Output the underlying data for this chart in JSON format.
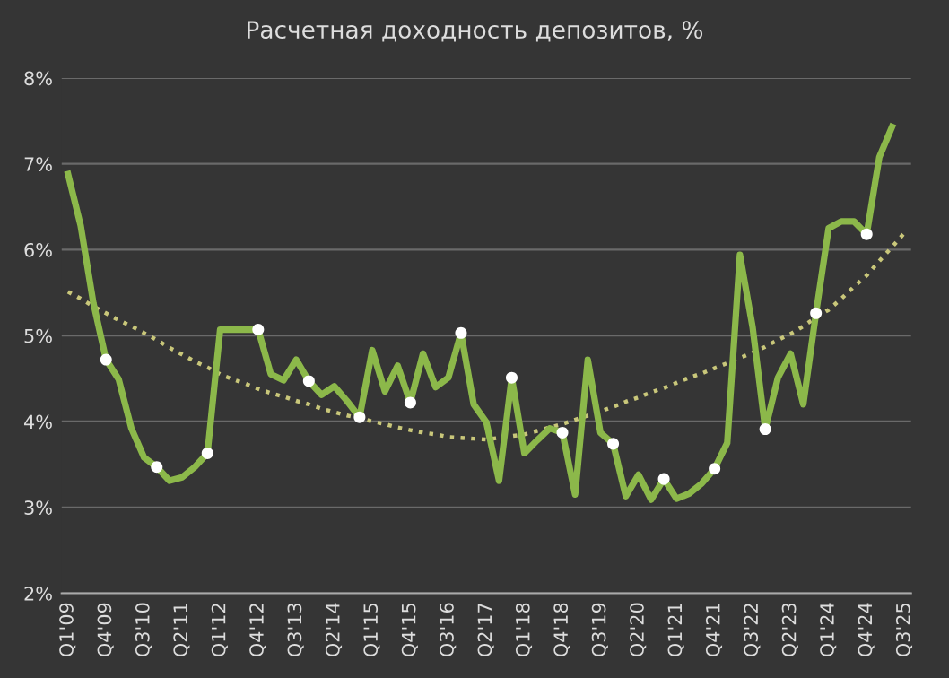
{
  "chart_data": {
    "type": "line",
    "title": "Расчетная доходность депозитов, %",
    "categories": [
      "Q1'09",
      null,
      null,
      "Q4'09",
      null,
      null,
      "Q3'10",
      null,
      null,
      "Q2'11",
      null,
      null,
      "Q1'12",
      null,
      null,
      "Q4'12",
      null,
      null,
      "Q3'13",
      null,
      null,
      "Q2'14",
      null,
      null,
      "Q1'15",
      null,
      null,
      "Q4'15",
      null,
      null,
      "Q3'16",
      null,
      null,
      "Q2'17",
      null,
      null,
      "Q1'18",
      null,
      null,
      "Q4'18",
      null,
      null,
      "Q3'19",
      null,
      null,
      "Q2'20",
      null,
      null,
      "Q1'21",
      null,
      null,
      "Q4'21",
      null,
      null,
      "Q3'22",
      null,
      null,
      "Q2'23",
      null,
      null,
      "Q1'24",
      null,
      null,
      "Q4'24",
      null,
      null,
      "Q3'25"
    ],
    "series": [
      {
        "color": "#8cb84a",
        "line_style": "solid",
        "marker": "none",
        "values": [
          6.88,
          6.28,
          5.38,
          4.72,
          4.49,
          3.92,
          3.58,
          3.47,
          3.31,
          3.35,
          3.47,
          3.63,
          5.07,
          5.07,
          5.07,
          5.07,
          4.55,
          4.48,
          4.72,
          4.47,
          4.31,
          4.41,
          4.24,
          4.05,
          4.83,
          4.35,
          4.65,
          4.22,
          4.79,
          4.4,
          4.51,
          5.03,
          4.2,
          3.99,
          3.31,
          4.51,
          3.63,
          3.78,
          3.92,
          3.87,
          3.15,
          4.72,
          3.87,
          3.74,
          3.13,
          3.38,
          3.09,
          3.33,
          3.1,
          3.16,
          3.28,
          3.45,
          3.75,
          5.94,
          5.1,
          3.91,
          4.51,
          4.79,
          4.2,
          5.26,
          6.25,
          6.33,
          6.33,
          6.18,
          7.08,
          7.43,
          null
        ]
      },
      {
        "type": "scatter",
        "color": "#ffffff",
        "marker": "circle",
        "values": [
          null,
          null,
          null,
          4.72,
          null,
          null,
          null,
          3.47,
          null,
          null,
          null,
          3.63,
          null,
          null,
          null,
          5.07,
          null,
          null,
          null,
          4.47,
          null,
          null,
          null,
          4.05,
          null,
          null,
          null,
          4.22,
          null,
          null,
          null,
          5.03,
          null,
          null,
          null,
          4.51,
          null,
          null,
          null,
          3.87,
          null,
          null,
          null,
          3.74,
          null,
          null,
          null,
          3.33,
          null,
          null,
          null,
          3.45,
          null,
          null,
          null,
          3.91,
          null,
          null,
          null,
          5.26,
          null,
          null,
          null,
          6.18,
          null,
          null,
          null
        ]
      },
      {
        "type": "line",
        "color": "#c9c77a",
        "line_style": "dotted",
        "marker": "none",
        "values": [
          5.51,
          5.43,
          5.34,
          5.26,
          5.18,
          5.11,
          5.03,
          4.95,
          4.86,
          4.78,
          4.7,
          4.63,
          4.55,
          4.49,
          4.44,
          4.38,
          4.33,
          4.29,
          4.24,
          4.2,
          4.15,
          4.11,
          4.07,
          4.04,
          4.0,
          3.97,
          3.93,
          3.9,
          3.87,
          3.85,
          3.82,
          3.81,
          3.8,
          3.79,
          3.81,
          3.83,
          3.85,
          3.89,
          3.93,
          3.97,
          4.02,
          4.07,
          4.12,
          4.17,
          4.23,
          4.28,
          4.34,
          4.39,
          4.45,
          4.51,
          4.56,
          4.62,
          4.68,
          4.74,
          4.8,
          4.87,
          4.95,
          5.02,
          5.11,
          5.21,
          5.3,
          5.43,
          5.57,
          5.7,
          5.87,
          6.03,
          6.2
        ]
      }
    ],
    "ylim": [
      2,
      8
    ],
    "yticks": [
      {
        "value": 2,
        "label": "2%"
      },
      {
        "value": 3,
        "label": "3%"
      },
      {
        "value": 4,
        "label": "4%"
      },
      {
        "value": 5,
        "label": "5%"
      },
      {
        "value": 6,
        "label": "6%"
      },
      {
        "value": 7,
        "label": "7%"
      },
      {
        "value": 8,
        "label": "8%"
      }
    ],
    "grid": "y"
  }
}
